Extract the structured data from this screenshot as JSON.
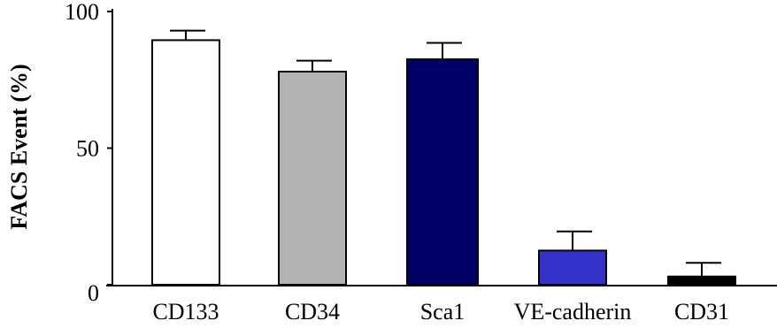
{
  "chart_data": {
    "type": "bar",
    "title": "",
    "xlabel": "",
    "ylabel": "FACS Event (%)",
    "ylim": [
      0,
      100
    ],
    "yticks": [
      0,
      50,
      100
    ],
    "grid": false,
    "categories": [
      "CD133",
      "CD34",
      "Sca1",
      "VE-cadherin",
      "CD31"
    ],
    "values": [
      89.5,
      78,
      82.5,
      12.5,
      3
    ],
    "errors": [
      3.5,
      4,
      6,
      7,
      5
    ],
    "bar_colors": [
      "#ffffff",
      "#b3b3b3",
      "#000066",
      "#3333cc",
      "#000000"
    ],
    "bar_edge_color": "#000000"
  }
}
